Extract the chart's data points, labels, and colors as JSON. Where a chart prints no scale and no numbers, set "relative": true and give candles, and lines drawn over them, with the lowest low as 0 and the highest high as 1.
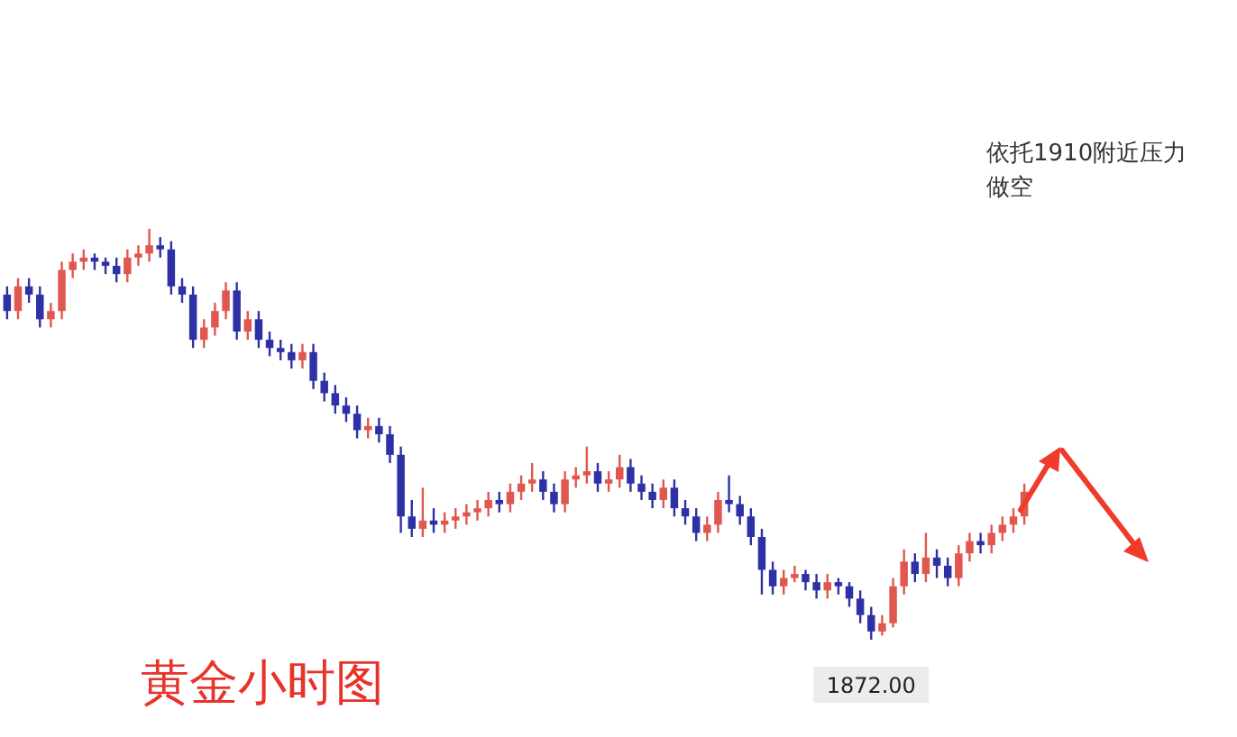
{
  "chart_data": {
    "type": "candlestick",
    "title": "黄金小时图",
    "relative": true,
    "colors": [
      "#2e31a6",
      "#e0574f",
      "#2e31a6",
      "#2e31a6",
      "#e0574f",
      "#e0574f",
      "#e0574f",
      "#e0574f",
      "#2e31a6",
      "#2e31a6",
      "#2e31a6",
      "#e0574f",
      "#e0574f",
      "#e0574f",
      "#2e31a6",
      "#2e31a6",
      "#2e31a6",
      "#2e31a6",
      "#e0574f",
      "#e0574f",
      "#e0574f",
      "#2e31a6",
      "#e0574f",
      "#2e31a6",
      "#2e31a6",
      "#2e31a6",
      "#2e31a6",
      "#e0574f",
      "#2e31a6",
      "#2e31a6",
      "#2e31a6",
      "#2e31a6",
      "#2e31a6",
      "#e0574f",
      "#2e31a6",
      "#2e31a6",
      "#2e31a6",
      "#2e31a6",
      "#e0574f",
      "#2e31a6",
      "#e0574f",
      "#e0574f",
      "#e0574f",
      "#e0574f",
      "#e0574f",
      "#2e31a6",
      "#e0574f",
      "#e0574f",
      "#e0574f",
      "#2e31a6",
      "#2e31a6",
      "#e0574f",
      "#e0574f",
      "#e0574f",
      "#2e31a6",
      "#e0574f",
      "#e0574f",
      "#2e31a6",
      "#2e31a6",
      "#2e31a6",
      "#e0574f",
      "#2e31a6",
      "#2e31a6",
      "#2e31a6",
      "#e0574f",
      "#e0574f",
      "#2e31a6",
      "#2e31a6",
      "#2e31a6",
      "#2e31a6",
      "#2e31a6",
      "#e0574f",
      "#e0574f",
      "#2e31a6",
      "#2e31a6",
      "#e0574f",
      "#2e31a6",
      "#2e31a6",
      "#2e31a6",
      "#2e31a6",
      "#e0574f",
      "#e0574f",
      "#e0574f",
      "#2e31a6",
      "#e0574f",
      "#2e31a6",
      "#2e31a6",
      "#e0574f",
      "#e0574f",
      "#2e31a6",
      "#e0574f",
      "#e0574f",
      "#e0574f",
      "#e0574f"
    ],
    "annotations": [
      "依托1910附近压力做空",
      "1872.00"
    ],
    "categories": [
      null,
      null,
      null,
      null,
      null,
      null,
      null,
      null,
      null,
      null,
      null,
      null,
      null,
      null,
      null,
      null,
      null,
      null,
      null,
      null,
      null,
      null,
      null,
      null,
      null,
      null,
      null,
      null,
      null,
      null,
      null,
      null,
      null,
      null,
      null,
      null,
      null,
      null,
      null,
      null,
      null,
      null,
      null,
      null,
      null,
      null,
      null,
      null,
      null,
      null,
      null,
      null,
      null,
      null,
      null,
      null,
      null,
      null,
      null,
      null,
      null,
      null,
      null,
      null,
      null,
      null,
      null,
      null,
      null,
      null,
      null,
      null,
      null,
      null,
      null,
      null,
      null,
      null,
      null,
      null,
      null,
      null,
      null,
      null,
      null,
      null,
      null,
      null,
      null,
      null,
      null,
      null,
      null,
      null
    ],
    "ohlc": [
      [
        0.84,
        0.86,
        0.78,
        0.8
      ],
      [
        0.8,
        0.88,
        0.78,
        0.86
      ],
      [
        0.86,
        0.88,
        0.82,
        0.84
      ],
      [
        0.84,
        0.86,
        0.76,
        0.78
      ],
      [
        0.78,
        0.82,
        0.76,
        0.8
      ],
      [
        0.8,
        0.92,
        0.78,
        0.9
      ],
      [
        0.9,
        0.94,
        0.88,
        0.92
      ],
      [
        0.92,
        0.95,
        0.9,
        0.93
      ],
      [
        0.93,
        0.94,
        0.9,
        0.92
      ],
      [
        0.92,
        0.93,
        0.89,
        0.91
      ],
      [
        0.91,
        0.93,
        0.87,
        0.89
      ],
      [
        0.89,
        0.95,
        0.87,
        0.93
      ],
      [
        0.93,
        0.96,
        0.91,
        0.94
      ],
      [
        0.94,
        1.0,
        0.92,
        0.96
      ],
      [
        0.96,
        0.98,
        0.93,
        0.95
      ],
      [
        0.95,
        0.97,
        0.84,
        0.86
      ],
      [
        0.86,
        0.88,
        0.82,
        0.84
      ],
      [
        0.84,
        0.86,
        0.71,
        0.73
      ],
      [
        0.73,
        0.78,
        0.71,
        0.76
      ],
      [
        0.76,
        0.82,
        0.74,
        0.8
      ],
      [
        0.8,
        0.87,
        0.78,
        0.85
      ],
      [
        0.85,
        0.87,
        0.73,
        0.75
      ],
      [
        0.75,
        0.8,
        0.73,
        0.78
      ],
      [
        0.78,
        0.8,
        0.71,
        0.73
      ],
      [
        0.73,
        0.75,
        0.69,
        0.71
      ],
      [
        0.71,
        0.73,
        0.68,
        0.7
      ],
      [
        0.7,
        0.72,
        0.66,
        0.68
      ],
      [
        0.68,
        0.72,
        0.66,
        0.7
      ],
      [
        0.7,
        0.72,
        0.61,
        0.63
      ],
      [
        0.63,
        0.65,
        0.58,
        0.6
      ],
      [
        0.6,
        0.62,
        0.55,
        0.57
      ],
      [
        0.57,
        0.59,
        0.53,
        0.55
      ],
      [
        0.55,
        0.57,
        0.49,
        0.51
      ],
      [
        0.51,
        0.54,
        0.49,
        0.52
      ],
      [
        0.52,
        0.54,
        0.48,
        0.5
      ],
      [
        0.5,
        0.52,
        0.43,
        0.45
      ],
      [
        0.45,
        0.47,
        0.26,
        0.3
      ],
      [
        0.3,
        0.34,
        0.25,
        0.27
      ],
      [
        0.27,
        0.37,
        0.25,
        0.29
      ],
      [
        0.29,
        0.32,
        0.26,
        0.28
      ],
      [
        0.28,
        0.31,
        0.26,
        0.29
      ],
      [
        0.29,
        0.32,
        0.27,
        0.3
      ],
      [
        0.3,
        0.33,
        0.28,
        0.31
      ],
      [
        0.31,
        0.34,
        0.29,
        0.32
      ],
      [
        0.32,
        0.36,
        0.3,
        0.34
      ],
      [
        0.34,
        0.36,
        0.31,
        0.33
      ],
      [
        0.33,
        0.38,
        0.31,
        0.36
      ],
      [
        0.36,
        0.4,
        0.34,
        0.38
      ],
      [
        0.38,
        0.43,
        0.36,
        0.39
      ],
      [
        0.39,
        0.41,
        0.34,
        0.36
      ],
      [
        0.36,
        0.38,
        0.31,
        0.33
      ],
      [
        0.33,
        0.41,
        0.31,
        0.39
      ],
      [
        0.39,
        0.42,
        0.37,
        0.4
      ],
      [
        0.4,
        0.47,
        0.38,
        0.41
      ],
      [
        0.41,
        0.43,
        0.36,
        0.38
      ],
      [
        0.38,
        0.41,
        0.36,
        0.39
      ],
      [
        0.39,
        0.45,
        0.37,
        0.42
      ],
      [
        0.42,
        0.44,
        0.36,
        0.38
      ],
      [
        0.38,
        0.4,
        0.34,
        0.36
      ],
      [
        0.36,
        0.38,
        0.32,
        0.34
      ],
      [
        0.34,
        0.39,
        0.32,
        0.37
      ],
      [
        0.37,
        0.39,
        0.3,
        0.32
      ],
      [
        0.32,
        0.34,
        0.28,
        0.3
      ],
      [
        0.3,
        0.32,
        0.24,
        0.26
      ],
      [
        0.26,
        0.3,
        0.24,
        0.28
      ],
      [
        0.28,
        0.36,
        0.26,
        0.34
      ],
      [
        0.34,
        0.4,
        0.31,
        0.33
      ],
      [
        0.33,
        0.35,
        0.28,
        0.3
      ],
      [
        0.3,
        0.32,
        0.23,
        0.25
      ],
      [
        0.25,
        0.27,
        0.11,
        0.17
      ],
      [
        0.17,
        0.19,
        0.11,
        0.13
      ],
      [
        0.13,
        0.17,
        0.11,
        0.15
      ],
      [
        0.15,
        0.18,
        0.14,
        0.16
      ],
      [
        0.16,
        0.17,
        0.12,
        0.14
      ],
      [
        0.14,
        0.16,
        0.1,
        0.12
      ],
      [
        0.12,
        0.16,
        0.1,
        0.14
      ],
      [
        0.14,
        0.15,
        0.11,
        0.13
      ],
      [
        0.13,
        0.14,
        0.08,
        0.1
      ],
      [
        0.1,
        0.12,
        0.04,
        0.06
      ],
      [
        0.06,
        0.08,
        0.0,
        0.02
      ],
      [
        0.02,
        0.06,
        0.01,
        0.04
      ],
      [
        0.04,
        0.15,
        0.03,
        0.13
      ],
      [
        0.13,
        0.22,
        0.11,
        0.19
      ],
      [
        0.19,
        0.21,
        0.14,
        0.16
      ],
      [
        0.16,
        0.26,
        0.14,
        0.2
      ],
      [
        0.2,
        0.22,
        0.15,
        0.18
      ],
      [
        0.18,
        0.2,
        0.13,
        0.15
      ],
      [
        0.15,
        0.23,
        0.13,
        0.21
      ],
      [
        0.21,
        0.26,
        0.19,
        0.24
      ],
      [
        0.24,
        0.26,
        0.21,
        0.23
      ],
      [
        0.23,
        0.28,
        0.21,
        0.26
      ],
      [
        0.26,
        0.3,
        0.24,
        0.28
      ],
      [
        0.28,
        0.32,
        0.26,
        0.3
      ],
      [
        0.3,
        0.38,
        0.28,
        0.36
      ]
    ]
  }
}
